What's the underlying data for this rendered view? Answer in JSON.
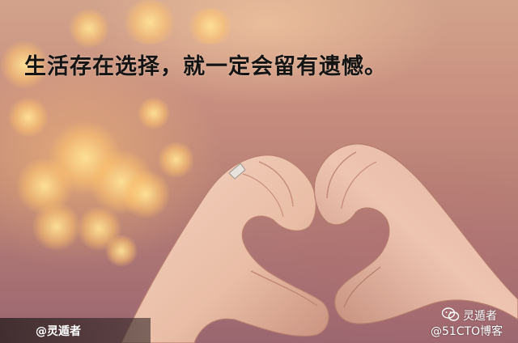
{
  "image": {
    "headline": "生活存在选择，就一定会留有遗憾。",
    "watermark_left": "@灵遁者",
    "watermark_right_name": "灵遁者",
    "watermark_right_site": "@51CTO博客",
    "watermark_right_icon": "wechat-icon",
    "colors": {
      "background_warm": "#c99080",
      "bokeh_glow": "#ffd890",
      "skin": "#efc7b2",
      "skin_shadow": "#c9917f",
      "text_dark": "#141414",
      "watermark_text": "#ffffff"
    }
  }
}
